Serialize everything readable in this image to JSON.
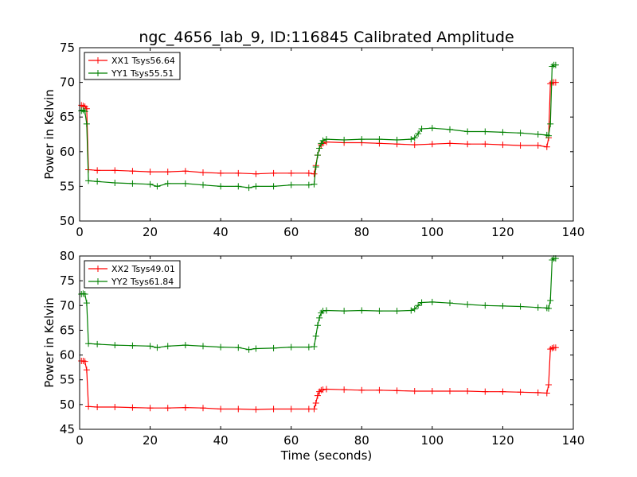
{
  "page": {
    "title": "ngc_4656_lab_9, ID:116845 Calibrated Amplitude"
  },
  "chart_data": [
    {
      "type": "line",
      "title": "ngc_4656_lab_9, ID:116845 Calibrated Amplitude",
      "xlabel": "",
      "ylabel": "Power in Kelvin",
      "xlim": [
        0,
        140
      ],
      "ylim": [
        50,
        75
      ],
      "xticks": [
        "0",
        "20",
        "40",
        "60",
        "80",
        "100",
        "120",
        "140"
      ],
      "yticks": [
        "50",
        "55",
        "60",
        "65",
        "70",
        "75"
      ],
      "legend_position": "top-left",
      "grid": false,
      "series": [
        {
          "name": "XX1 Tsys56.64",
          "color": "#ff0000",
          "marker": "+",
          "x": [
            0.5,
            1,
            1.5,
            2,
            2.5,
            5,
            10,
            15,
            20,
            25,
            30,
            35,
            40,
            45,
            50,
            55,
            60,
            65,
            66.5,
            67,
            67.5,
            68,
            68.5,
            69,
            70,
            75,
            80,
            85,
            90,
            95,
            100,
            105,
            110,
            115,
            120,
            125,
            130,
            132.5,
            133,
            133.5,
            134,
            134.5,
            135
          ],
          "values": [
            66.7,
            66.6,
            66.5,
            66.2,
            57.4,
            57.3,
            57.3,
            57.2,
            57.1,
            57.1,
            57.2,
            57.0,
            56.9,
            56.9,
            56.8,
            56.9,
            56.9,
            56.9,
            56.8,
            58.0,
            59.5,
            60.5,
            61.0,
            61.2,
            61.4,
            61.3,
            61.3,
            61.2,
            61.1,
            61.0,
            61.1,
            61.2,
            61.1,
            61.1,
            61.0,
            60.9,
            60.9,
            60.7,
            62.0,
            69.8,
            70.0,
            70.0,
            70.0
          ]
        },
        {
          "name": "YY1 Tsys55.51",
          "color": "#008000",
          "marker": "+",
          "x": [
            0.5,
            1,
            1.5,
            2,
            2.5,
            5,
            10,
            15,
            20,
            22,
            25,
            30,
            35,
            40,
            45,
            48,
            50,
            55,
            60,
            65,
            66.5,
            67,
            67.5,
            68,
            68.5,
            69,
            70,
            75,
            80,
            85,
            90,
            94,
            95,
            96,
            97,
            100,
            105,
            110,
            115,
            120,
            125,
            130,
            132.5,
            133,
            133.5,
            134,
            134.5,
            135
          ],
          "values": [
            65.9,
            66.0,
            65.8,
            64.0,
            55.8,
            55.7,
            55.5,
            55.4,
            55.3,
            55.0,
            55.4,
            55.4,
            55.2,
            55.0,
            55.0,
            54.8,
            55.0,
            55.0,
            55.2,
            55.2,
            55.3,
            57.8,
            59.5,
            60.5,
            61.2,
            61.6,
            61.8,
            61.7,
            61.8,
            61.8,
            61.7,
            61.8,
            62.0,
            62.6,
            63.3,
            63.4,
            63.2,
            62.9,
            62.9,
            62.8,
            62.7,
            62.5,
            62.4,
            62.3,
            64.0,
            72.3,
            72.5,
            72.5
          ]
        }
      ]
    },
    {
      "type": "line",
      "title": "",
      "xlabel": "Time (seconds)",
      "ylabel": "Power in Kelvin",
      "xlim": [
        0,
        140
      ],
      "ylim": [
        45,
        80
      ],
      "xticks": [
        "0",
        "20",
        "40",
        "60",
        "80",
        "100",
        "120",
        "140"
      ],
      "yticks": [
        "45",
        "50",
        "55",
        "60",
        "65",
        "70",
        "75",
        "80"
      ],
      "legend_position": "top-left",
      "grid": false,
      "series": [
        {
          "name": "XX2 Tsys49.01",
          "color": "#ff0000",
          "marker": "+",
          "x": [
            0.5,
            1,
            1.5,
            2,
            2.5,
            5,
            10,
            15,
            20,
            25,
            30,
            35,
            40,
            45,
            50,
            55,
            60,
            65,
            66.5,
            67,
            67.5,
            68,
            68.5,
            69,
            70,
            75,
            80,
            85,
            90,
            95,
            100,
            105,
            110,
            115,
            120,
            125,
            130,
            132.5,
            133,
            133.5,
            134,
            134.5,
            135
          ],
          "values": [
            58.8,
            58.8,
            58.7,
            57.0,
            49.6,
            49.5,
            49.5,
            49.4,
            49.3,
            49.3,
            49.4,
            49.3,
            49.1,
            49.1,
            49.0,
            49.1,
            49.1,
            49.1,
            49.1,
            50.3,
            51.8,
            52.6,
            52.9,
            53.0,
            53.1,
            53.0,
            52.9,
            52.9,
            52.8,
            52.7,
            52.7,
            52.7,
            52.7,
            52.6,
            52.6,
            52.5,
            52.4,
            52.3,
            54.0,
            61.2,
            61.4,
            61.5,
            61.5
          ]
        },
        {
          "name": "YY2 Tsys61.84",
          "color": "#008000",
          "marker": "+",
          "x": [
            0.5,
            1,
            1.5,
            2,
            2.5,
            5,
            10,
            15,
            20,
            22,
            25,
            30,
            35,
            40,
            45,
            48,
            50,
            55,
            60,
            65,
            66.5,
            67,
            67.5,
            68,
            68.5,
            69,
            70,
            75,
            80,
            85,
            90,
            94,
            95,
            96,
            97,
            100,
            105,
            110,
            115,
            120,
            125,
            130,
            132.5,
            133,
            133.5,
            134,
            134.5,
            135
          ],
          "values": [
            72.3,
            72.4,
            72.3,
            70.5,
            62.3,
            62.2,
            62.0,
            61.9,
            61.8,
            61.5,
            61.8,
            62.0,
            61.8,
            61.6,
            61.5,
            61.1,
            61.3,
            61.4,
            61.6,
            61.6,
            61.7,
            63.8,
            66.0,
            67.5,
            68.5,
            68.9,
            69.0,
            68.9,
            69.0,
            68.9,
            68.9,
            69.0,
            69.3,
            70.0,
            70.6,
            70.7,
            70.5,
            70.2,
            70.0,
            69.9,
            69.8,
            69.6,
            69.5,
            69.4,
            71.0,
            79.2,
            79.5,
            79.5
          ]
        }
      ]
    }
  ]
}
